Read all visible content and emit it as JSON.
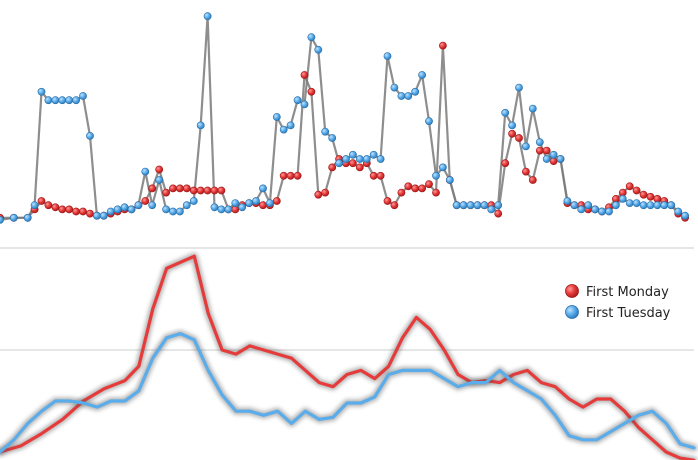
{
  "colors": {
    "first_monday": "#e63b3b",
    "first_tuesday": "#5aacea",
    "connector": "#7a7a7a",
    "grid": "#cccccc"
  },
  "legend": {
    "placement": "right",
    "items": [
      {
        "label": "First Monday",
        "color": "#e63b3b"
      },
      {
        "label": "First Tuesday",
        "color": "#5aacea"
      }
    ]
  },
  "chart_data": [
    {
      "type": "scatter",
      "title": "",
      "xlabel": "",
      "ylabel": "",
      "xlim": [
        0,
        100
      ],
      "ylim": [
        0,
        100
      ],
      "grid": false,
      "series": [
        {
          "name": "First Monday",
          "values": [
            [
              0,
              2
            ],
            [
              2,
              2
            ],
            [
              4,
              2
            ],
            [
              5,
              6
            ],
            [
              6,
              10
            ],
            [
              7,
              8
            ],
            [
              8,
              7
            ],
            [
              9,
              6
            ],
            [
              10,
              6
            ],
            [
              11,
              5
            ],
            [
              12,
              5
            ],
            [
              13,
              4
            ],
            [
              14,
              3
            ],
            [
              15,
              3
            ],
            [
              16,
              4
            ],
            [
              17,
              5
            ],
            [
              18,
              6
            ],
            [
              19,
              6
            ],
            [
              20,
              8
            ],
            [
              21,
              10
            ],
            [
              22,
              16
            ],
            [
              23,
              25
            ],
            [
              24,
              14
            ],
            [
              25,
              16
            ],
            [
              26,
              16
            ],
            [
              27,
              16
            ],
            [
              28,
              15
            ],
            [
              29,
              15
            ],
            [
              30,
              15
            ],
            [
              31,
              15
            ],
            [
              32,
              15
            ],
            [
              33,
              6
            ],
            [
              34,
              6
            ],
            [
              35,
              8
            ],
            [
              36,
              9
            ],
            [
              37,
              9
            ],
            [
              38,
              8
            ],
            [
              39,
              8
            ],
            [
              40,
              10
            ],
            [
              41,
              22
            ],
            [
              42,
              22
            ],
            [
              43,
              22
            ],
            [
              44,
              70
            ],
            [
              45,
              62
            ],
            [
              46,
              13
            ],
            [
              47,
              14
            ],
            [
              48,
              26
            ],
            [
              49,
              30
            ],
            [
              50,
              28
            ],
            [
              51,
              28
            ],
            [
              52,
              26
            ],
            [
              53,
              28
            ],
            [
              54,
              22
            ],
            [
              55,
              22
            ],
            [
              56,
              10
            ],
            [
              57,
              8
            ],
            [
              58,
              14
            ],
            [
              59,
              17
            ],
            [
              60,
              16
            ],
            [
              61,
              16
            ],
            [
              62,
              18
            ],
            [
              63,
              14
            ],
            [
              64,
              84
            ],
            [
              65,
              20
            ],
            [
              66,
              8
            ],
            [
              67,
              8
            ],
            [
              68,
              8
            ],
            [
              69,
              8
            ],
            [
              70,
              8
            ],
            [
              71,
              8
            ],
            [
              72,
              4
            ],
            [
              73,
              28
            ],
            [
              74,
              42
            ],
            [
              75,
              40
            ],
            [
              76,
              24
            ],
            [
              77,
              20
            ],
            [
              78,
              34
            ],
            [
              79,
              34
            ],
            [
              80,
              29
            ],
            [
              81,
              30
            ],
            [
              82,
              9
            ],
            [
              83,
              8
            ],
            [
              84,
              8
            ],
            [
              85,
              6
            ],
            [
              86,
              6
            ],
            [
              87,
              5
            ],
            [
              88,
              7
            ],
            [
              89,
              11
            ],
            [
              90,
              14
            ],
            [
              91,
              17
            ],
            [
              92,
              15
            ],
            [
              93,
              13
            ],
            [
              94,
              12
            ],
            [
              95,
              11
            ],
            [
              96,
              10
            ],
            [
              97,
              8
            ],
            [
              98,
              4
            ],
            [
              99,
              2
            ]
          ]
        },
        {
          "name": "First Tuesday",
          "values": [
            [
              0,
              1
            ],
            [
              2,
              2
            ],
            [
              4,
              2
            ],
            [
              5,
              8
            ],
            [
              6,
              62
            ],
            [
              7,
              58
            ],
            [
              8,
              58
            ],
            [
              9,
              58
            ],
            [
              10,
              58
            ],
            [
              11,
              58
            ],
            [
              12,
              60
            ],
            [
              13,
              41
            ],
            [
              14,
              3
            ],
            [
              15,
              3
            ],
            [
              16,
              5
            ],
            [
              17,
              6
            ],
            [
              18,
              7
            ],
            [
              19,
              6
            ],
            [
              20,
              8
            ],
            [
              21,
              24
            ],
            [
              22,
              8
            ],
            [
              23,
              20
            ],
            [
              24,
              6
            ],
            [
              25,
              5
            ],
            [
              26,
              5
            ],
            [
              27,
              8
            ],
            [
              28,
              10
            ],
            [
              29,
              46
            ],
            [
              30,
              98
            ],
            [
              31,
              7
            ],
            [
              32,
              6
            ],
            [
              33,
              6
            ],
            [
              34,
              9
            ],
            [
              35,
              7
            ],
            [
              36,
              9
            ],
            [
              37,
              10
            ],
            [
              38,
              16
            ],
            [
              39,
              9
            ],
            [
              40,
              50
            ],
            [
              41,
              44
            ],
            [
              42,
              46
            ],
            [
              43,
              58
            ],
            [
              44,
              56
            ],
            [
              45,
              88
            ],
            [
              46,
              82
            ],
            [
              47,
              43
            ],
            [
              48,
              40
            ],
            [
              49,
              28
            ],
            [
              50,
              30
            ],
            [
              51,
              32
            ],
            [
              52,
              30
            ],
            [
              53,
              30
            ],
            [
              54,
              32
            ],
            [
              55,
              30
            ],
            [
              56,
              79
            ],
            [
              57,
              64
            ],
            [
              58,
              60
            ],
            [
              59,
              60
            ],
            [
              60,
              62
            ],
            [
              61,
              70
            ],
            [
              62,
              48
            ],
            [
              63,
              22
            ],
            [
              64,
              26
            ],
            [
              65,
              20
            ],
            [
              66,
              8
            ],
            [
              67,
              8
            ],
            [
              68,
              8
            ],
            [
              69,
              8
            ],
            [
              70,
              8
            ],
            [
              71,
              6
            ],
            [
              72,
              8
            ],
            [
              73,
              52
            ],
            [
              74,
              46
            ],
            [
              75,
              64
            ],
            [
              76,
              36
            ],
            [
              77,
              54
            ],
            [
              78,
              38
            ],
            [
              79,
              30
            ],
            [
              80,
              32
            ],
            [
              81,
              30
            ],
            [
              82,
              10
            ],
            [
              83,
              8
            ],
            [
              84,
              6
            ],
            [
              85,
              8
            ],
            [
              86,
              6
            ],
            [
              87,
              5
            ],
            [
              88,
              5
            ],
            [
              89,
              8
            ],
            [
              90,
              11
            ],
            [
              91,
              9
            ],
            [
              92,
              9
            ],
            [
              93,
              8
            ],
            [
              94,
              8
            ],
            [
              95,
              8
            ],
            [
              96,
              8
            ],
            [
              97,
              8
            ],
            [
              98,
              5
            ],
            [
              99,
              3
            ]
          ]
        }
      ]
    },
    {
      "type": "line",
      "title": "",
      "xlabel": "",
      "ylabel": "",
      "xlim": [
        0,
        100
      ],
      "ylim": [
        0,
        100
      ],
      "grid": true,
      "series": [
        {
          "name": "First Monday",
          "values": [
            [
              0,
              0
            ],
            [
              3,
              3
            ],
            [
              6,
              9
            ],
            [
              9,
              16
            ],
            [
              12,
              25
            ],
            [
              15,
              31
            ],
            [
              18,
              35
            ],
            [
              20,
              42
            ],
            [
              22,
              70
            ],
            [
              24,
              90
            ],
            [
              26,
              93
            ],
            [
              28,
              96
            ],
            [
              30,
              68
            ],
            [
              32,
              50
            ],
            [
              34,
              48
            ],
            [
              36,
              52
            ],
            [
              38,
              50
            ],
            [
              40,
              48
            ],
            [
              42,
              46
            ],
            [
              44,
              40
            ],
            [
              46,
              34
            ],
            [
              48,
              32
            ],
            [
              50,
              38
            ],
            [
              52,
              40
            ],
            [
              54,
              36
            ],
            [
              56,
              42
            ],
            [
              58,
              56
            ],
            [
              60,
              66
            ],
            [
              62,
              60
            ],
            [
              64,
              50
            ],
            [
              66,
              38
            ],
            [
              68,
              34
            ],
            [
              70,
              35
            ],
            [
              72,
              34
            ],
            [
              74,
              38
            ],
            [
              76,
              40
            ],
            [
              78,
              34
            ],
            [
              80,
              32
            ],
            [
              82,
              26
            ],
            [
              84,
              22
            ],
            [
              86,
              26
            ],
            [
              88,
              26
            ],
            [
              90,
              20
            ],
            [
              92,
              12
            ],
            [
              94,
              6
            ],
            [
              96,
              0
            ],
            [
              98,
              -3
            ],
            [
              100,
              -4
            ]
          ]
        },
        {
          "name": "First Tuesday",
          "values": [
            [
              0,
              0
            ],
            [
              2,
              6
            ],
            [
              4,
              14
            ],
            [
              6,
              20
            ],
            [
              8,
              25
            ],
            [
              10,
              25
            ],
            [
              12,
              24
            ],
            [
              14,
              22
            ],
            [
              16,
              25
            ],
            [
              18,
              25
            ],
            [
              20,
              30
            ],
            [
              22,
              46
            ],
            [
              24,
              56
            ],
            [
              26,
              58
            ],
            [
              28,
              55
            ],
            [
              30,
              40
            ],
            [
              32,
              28
            ],
            [
              34,
              20
            ],
            [
              36,
              20
            ],
            [
              38,
              18
            ],
            [
              40,
              20
            ],
            [
              42,
              14
            ],
            [
              44,
              20
            ],
            [
              46,
              16
            ],
            [
              48,
              17
            ],
            [
              50,
              24
            ],
            [
              52,
              24
            ],
            [
              54,
              27
            ],
            [
              56,
              38
            ],
            [
              58,
              40
            ],
            [
              60,
              40
            ],
            [
              62,
              40
            ],
            [
              64,
              36
            ],
            [
              66,
              32
            ],
            [
              68,
              34
            ],
            [
              70,
              34
            ],
            [
              72,
              40
            ],
            [
              74,
              34
            ],
            [
              76,
              30
            ],
            [
              78,
              26
            ],
            [
              80,
              18
            ],
            [
              82,
              8
            ],
            [
              84,
              6
            ],
            [
              86,
              6
            ],
            [
              88,
              10
            ],
            [
              90,
              14
            ],
            [
              92,
              18
            ],
            [
              94,
              20
            ],
            [
              96,
              14
            ],
            [
              98,
              4
            ],
            [
              100,
              2
            ]
          ]
        }
      ]
    }
  ]
}
